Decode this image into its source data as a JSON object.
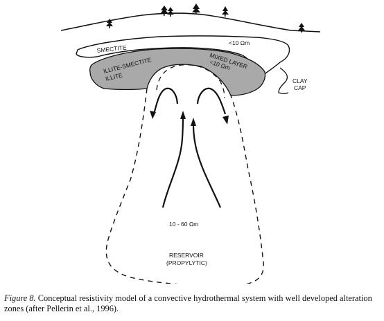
{
  "labels": {
    "smectite": "SMECTITE",
    "res_top": "<10 Ωm",
    "mixed_line1": "MIXED LAYER",
    "mixed_line2": "<10 Ωm",
    "illite_line1": "ILLITE-SMECTITE",
    "illite_line2": "ILLITE",
    "claycap_line1": "CLAY",
    "claycap_line2": "CAP",
    "reservoir_res": "10 - 60 Ωm",
    "reservoir_line1": "RESERVOIR",
    "reservoir_line2": "(PROPYLYTIC)"
  },
  "caption": {
    "figure_label": "Figure 8.",
    "text": " Conceptual resistivity model of a convective hydrothermal system with well developed alteration zones (after Pellerin et al., 1996)."
  },
  "icons": {
    "trees": "tree-icon",
    "arrows": "arrow-icon"
  },
  "colors": {
    "illite_fill": "#a9a9a9",
    "stroke": "#111111"
  }
}
